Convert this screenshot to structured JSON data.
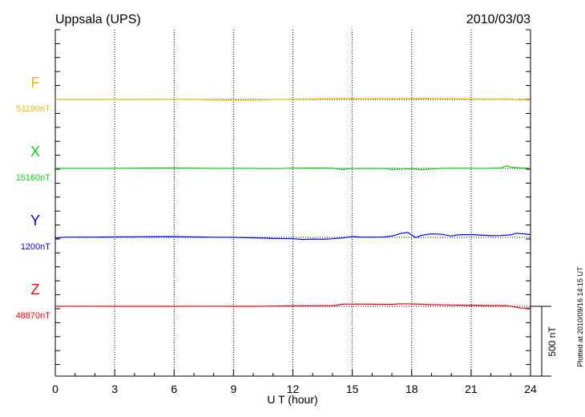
{
  "chart_data": {
    "type": "line",
    "title": "Uppsala (UPS)",
    "date": "2010/03/03",
    "xlabel": "U T (hour)",
    "xlim": [
      0,
      24
    ],
    "xticks": [
      "0",
      "3",
      "6",
      "9",
      "12",
      "15",
      "18",
      "21",
      "24"
    ],
    "scale_label": "500 nT",
    "scale_nT": 500,
    "grid": "dotted vertical every 3 h, dotted baseline per trace",
    "footer": "Plotted at 2010/09/16 14:15 UT",
    "series": [
      {
        "name": "F",
        "baseline_label": "51190nT",
        "color": "#f5b400",
        "x": [
          0,
          1,
          2,
          3,
          4,
          5,
          6,
          7,
          8,
          9,
          10,
          11,
          12,
          13,
          14,
          15,
          15.5,
          16,
          17,
          18,
          18.8,
          19,
          20,
          21,
          22,
          23,
          23.4,
          24
        ],
        "deviation_nT": [
          0,
          0,
          0,
          0,
          0,
          1,
          1,
          0,
          -3,
          -5,
          -4,
          -1,
          2,
          3,
          5,
          6,
          4,
          5,
          5,
          6,
          8,
          5,
          5,
          3,
          2,
          3,
          -3,
          -4
        ]
      },
      {
        "name": "X",
        "baseline_label": "15160nT",
        "color": "#00dd00",
        "x": [
          0,
          1,
          2,
          3,
          4,
          5,
          6,
          7,
          8,
          9,
          10,
          11,
          12,
          12.5,
          13,
          14,
          14.5,
          15,
          16,
          16.8,
          17,
          17.5,
          18,
          18.5,
          19,
          19.5,
          20,
          21,
          22,
          22.5,
          22.8,
          23,
          23.5,
          24
        ],
        "deviation_nT": [
          0,
          0,
          0,
          0,
          2,
          3,
          3,
          2,
          0,
          0,
          0,
          -2,
          2,
          2,
          3,
          2,
          -8,
          -1,
          0,
          -2,
          -10,
          -4,
          -3,
          -10,
          -4,
          0,
          2,
          0,
          0,
          4,
          18,
          10,
          3,
          0
        ]
      },
      {
        "name": "Y",
        "baseline_label": "1200nT",
        "color": "#0000ff",
        "x": [
          0,
          0.5,
          1,
          2,
          3,
          4,
          5,
          6,
          7,
          8,
          9,
          10,
          10.5,
          11,
          12,
          12.5,
          13,
          13.5,
          14,
          14.5,
          15,
          15.5,
          16,
          16.5,
          17,
          17.5,
          17.8,
          18.2,
          18.5,
          19,
          19.5,
          20,
          20.3,
          21,
          22,
          22.5,
          23,
          23.3,
          24
        ],
        "deviation_nT": [
          -6,
          2,
          2,
          2,
          3,
          4,
          5,
          6,
          3,
          1,
          0,
          -3,
          -5,
          -8,
          -10,
          -15,
          -12,
          -14,
          -10,
          -4,
          6,
          2,
          2,
          2,
          10,
          30,
          35,
          -2,
          15,
          25,
          22,
          10,
          18,
          20,
          12,
          13,
          18,
          30,
          20
        ]
      },
      {
        "name": "Z",
        "baseline_label": "48870nT",
        "color": "#ff0000",
        "x": [
          0,
          1,
          2,
          3,
          4,
          5,
          6,
          7,
          8,
          9,
          10,
          11,
          12,
          13,
          14,
          14.5,
          15,
          16,
          17,
          17.5,
          18,
          19,
          20,
          21,
          22,
          22.8,
          23.5,
          24
        ],
        "deviation_nT": [
          0,
          1,
          1,
          0,
          0,
          0,
          0,
          1,
          1,
          0,
          0,
          2,
          3,
          4,
          5,
          15,
          16,
          15,
          14,
          18,
          17,
          12,
          10,
          8,
          6,
          5,
          -12,
          -14
        ]
      }
    ]
  }
}
